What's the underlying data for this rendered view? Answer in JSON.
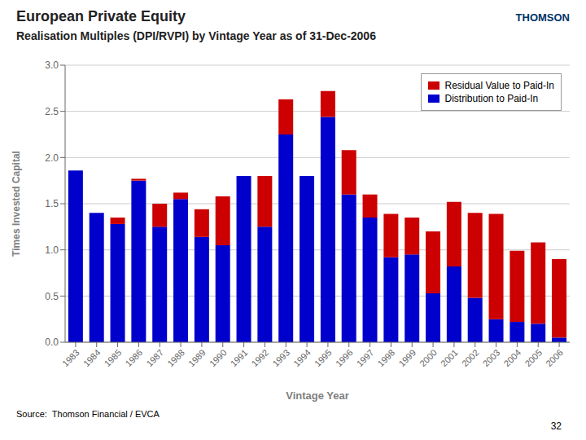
{
  "chart_data": {
    "type": "bar",
    "title": "European Private Equity",
    "subtitle": "Realisation Multiples (DPI/RVPI) by Vintage Year as of 31-Dec-2006",
    "categories": [
      "1983",
      "1984",
      "1985",
      "1986",
      "1987",
      "1988",
      "1989",
      "1990",
      "1991",
      "1992",
      "1993",
      "1994",
      "1995",
      "1996",
      "1997",
      "1998",
      "1999",
      "2000",
      "2001",
      "2002",
      "2003",
      "2004",
      "2005",
      "2006"
    ],
    "series": [
      {
        "name": "Distribution to Paid-In",
        "color": "#0000cc",
        "values": [
          1.86,
          1.4,
          1.28,
          1.75,
          1.25,
          1.55,
          1.14,
          1.05,
          1.8,
          1.25,
          2.25,
          1.8,
          2.44,
          1.6,
          1.35,
          0.92,
          0.95,
          0.53,
          0.82,
          0.48,
          0.25,
          0.22,
          0.2,
          0.05
        ]
      },
      {
        "name": "Residual Value to Paid-In",
        "color": "#cc0000",
        "values": [
          0.0,
          0.0,
          0.07,
          0.02,
          0.25,
          0.07,
          0.3,
          0.53,
          0.0,
          0.55,
          0.38,
          0.0,
          0.28,
          0.48,
          0.25,
          0.47,
          0.4,
          0.67,
          0.7,
          0.92,
          1.14,
          0.77,
          0.88,
          0.85
        ]
      }
    ],
    "stacked": true,
    "xlabel": "Vintage Year",
    "ylabel": "Times Invested Capital",
    "ylim": [
      0.0,
      3.0
    ],
    "yticks": [
      {
        "value": 0.0,
        "label": "0.0"
      },
      0.5,
      {
        "value": 1.0,
        "label": "1.0"
      },
      1.5,
      {
        "value": 2.0,
        "label": "2.0"
      },
      2.5,
      {
        "value": 3.0,
        "label": "3.0"
      }
    ],
    "grid": true,
    "legend": "upper right",
    "annotations": [
      "THOMSON",
      "Source:  Thomson Financial / EVCA",
      "32"
    ]
  }
}
